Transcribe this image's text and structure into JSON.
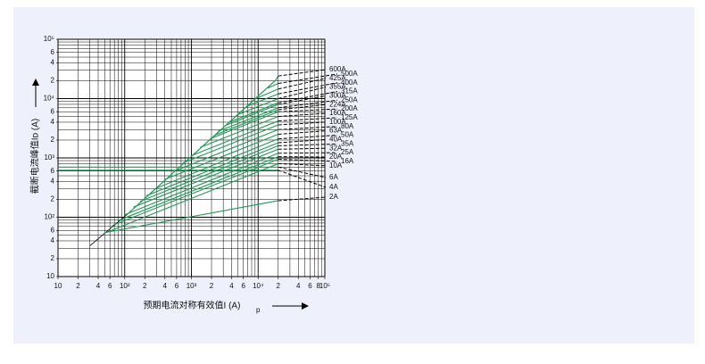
{
  "chart_data": {
    "type": "line",
    "y_label": "截断电流峰值Iᴅ (A)",
    "x_label": "预期电流对称有效值I (A)",
    "x_label_sub": "p",
    "log_x": true,
    "log_y": true,
    "grid": true,
    "xlim": [
      10,
      100000
    ],
    "ylim": [
      10,
      100000
    ],
    "xticks": [
      10,
      {
        "value": 20,
        "label": "2"
      },
      {
        "value": 40,
        "label": "4"
      },
      {
        "value": 60,
        "label": "6"
      },
      {
        "value": 100,
        "label": "10²"
      },
      {
        "value": 200,
        "label": "2"
      },
      {
        "value": 400,
        "label": "4"
      },
      {
        "value": 600,
        "label": "6"
      },
      {
        "value": 1000,
        "label": "10³"
      },
      {
        "value": 2000,
        "label": "2"
      },
      {
        "value": 4000,
        "label": "4"
      },
      {
        "value": 6000,
        "label": "6"
      },
      {
        "value": 10000,
        "label": "10⁴"
      },
      {
        "value": 20000,
        "label": "2"
      },
      {
        "value": 40000,
        "label": "4"
      },
      {
        "value": 60000,
        "label": "6"
      },
      {
        "value": 80000,
        "label": "8"
      },
      {
        "value": 100000,
        "label": "10⁵"
      }
    ],
    "yticks": [
      10,
      {
        "value": 20,
        "label": "2"
      },
      {
        "value": 40,
        "label": "4"
      },
      {
        "value": 60,
        "label": "6"
      },
      {
        "value": 100,
        "label": "10²"
      },
      {
        "value": 200,
        "label": "2"
      },
      {
        "value": 400,
        "label": "4"
      },
      {
        "value": 600,
        "label": "6"
      },
      {
        "value": 1000,
        "label": "10³"
      },
      {
        "value": 2000,
        "label": "2"
      },
      {
        "value": 4000,
        "label": "4"
      },
      {
        "value": 6000,
        "label": "6"
      },
      {
        "value": 10000,
        "label": "10⁴"
      },
      {
        "value": 20000,
        "label": "2"
      },
      {
        "value": 40000,
        "label": "4"
      },
      {
        "value": 60000,
        "label": "6"
      },
      {
        "value": 100000,
        "label": "10⁵"
      }
    ],
    "grid_values": [
      10,
      20,
      30,
      40,
      50,
      60,
      70,
      80,
      90,
      100,
      200,
      300,
      400,
      500,
      600,
      700,
      800,
      900,
      1000,
      2000,
      3000,
      4000,
      5000,
      6000,
      7000,
      8000,
      9000,
      10000,
      20000,
      30000,
      40000,
      50000,
      60000,
      70000,
      80000,
      90000,
      100000
    ],
    "color": "#1e9a55",
    "envelope": {
      "x": [
        30,
        117,
        18000
      ],
      "values": [
        33,
        120,
        20000
      ]
    },
    "series": [
      {
        "name": "600A",
        "x": [
          18000,
          20000
        ],
        "values": [
          20000,
          24000
        ]
      },
      {
        "name": "500A",
        "x": [
          14000,
          20000
        ],
        "values": [
          15000,
          18000
        ]
      },
      {
        "name": "425A",
        "x": [
          9300,
          20000
        ],
        "values": [
          10000,
          14500
        ]
      },
      {
        "name": "400A",
        "x": [
          6700,
          20000
        ],
        "values": [
          7400,
          12000
        ]
      },
      {
        "name": "355A",
        "x": [
          4800,
          20000
        ],
        "values": [
          5300,
          10000
        ]
      },
      {
        "name": "315A",
        "x": [
          3500,
          20000
        ],
        "values": [
          3900,
          8500
        ]
      },
      {
        "name": "300A",
        "x": [
          3200,
          20000
        ],
        "values": [
          3500,
          8000
        ]
      },
      {
        "name": "250A",
        "x": [
          2500,
          20000
        ],
        "values": [
          2800,
          7000
        ]
      },
      {
        "name": "224A",
        "x": [
          2200,
          20000
        ],
        "values": [
          2400,
          6500
        ]
      },
      {
        "name": "200A",
        "x": [
          1900,
          20000
        ],
        "values": [
          2100,
          6000
        ]
      },
      {
        "name": "160A",
        "x": [
          1350,
          20000
        ],
        "values": [
          1500,
          5000
        ]
      },
      {
        "name": "125A",
        "x": [
          980,
          20000
        ],
        "values": [
          1080,
          4200
        ]
      },
      {
        "name": "100A",
        "x": [
          740,
          20000
        ],
        "values": [
          820,
          3600
        ]
      },
      {
        "name": "80A",
        "x": [
          540,
          20000
        ],
        "values": [
          590,
          3000
        ]
      },
      {
        "name": "63A",
        "x": [
          390,
          20000
        ],
        "values": [
          430,
          2500
        ]
      },
      {
        "name": "50A",
        "x": [
          280,
          20000
        ],
        "values": [
          300,
          2100
        ]
      },
      {
        "name": "40A",
        "x": [
          210,
          20000
        ],
        "values": [
          230,
          1800
        ]
      },
      {
        "name": "35A",
        "x": [
          170,
          20000
        ],
        "values": [
          185,
          1600
        ]
      },
      {
        "name": "32A",
        "x": [
          135,
          20000
        ],
        "values": [
          148,
          1400
        ]
      },
      {
        "name": "25A",
        "x": [
          100,
          20000
        ],
        "values": [
          110,
          1200
        ]
      },
      {
        "name": "20A",
        "x": [
          80,
          20000
        ],
        "values": [
          88,
          1050
        ]
      },
      {
        "name": "16A",
        "x": [
          66,
          20000
        ],
        "values": [
          73,
          950
        ]
      },
      {
        "name": "10A",
        "x": [
          48,
          20000
        ],
        "values": [
          53,
          800
        ]
      },
      {
        "name": "6A",
        "x": [
          10,
          20000
        ],
        "values": [
          700,
          700
        ]
      },
      {
        "name": "4A",
        "x": [
          10,
          20000
        ],
        "values": [
          620,
          620
        ]
      },
      {
        "name": "2A",
        "x": [
          54,
          20000
        ],
        "values": [
          56,
          190
        ]
      }
    ]
  }
}
